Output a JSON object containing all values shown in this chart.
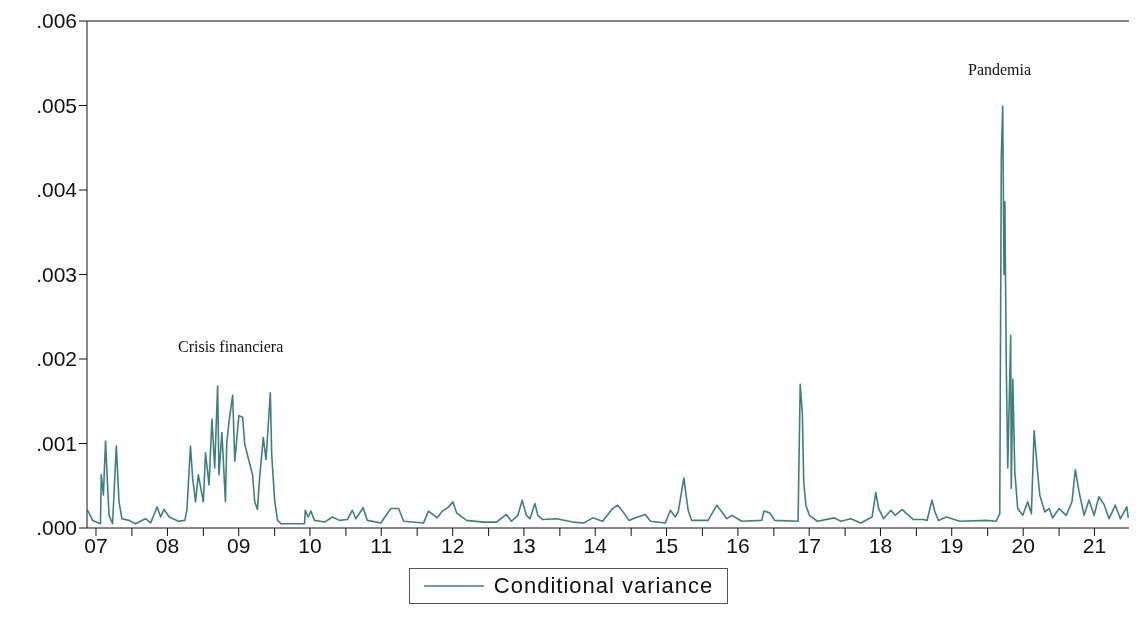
{
  "chart_data": {
    "type": "line",
    "x": [
      "2007-05-19",
      "2007-06-14",
      "2007-07-24",
      "2007-07-28",
      "2007-08-08",
      "2007-08-19",
      "2007-08-30",
      "2007-09-06",
      "2007-09-24",
      "2007-10-13",
      "2007-10-27",
      "2007-11-11",
      "2007-12-17",
      "2008-01-19",
      "2008-03-11",
      "2008-04-06",
      "2008-05-09",
      "2008-05-27",
      "2008-06-14",
      "2008-07-10",
      "2008-08-26",
      "2008-09-28",
      "2008-10-09",
      "2008-10-27",
      "2008-11-07",
      "2008-11-22",
      "2008-12-06",
      "2009-01-01",
      "2009-01-12",
      "2009-01-30",
      "2009-02-14",
      "2009-02-28",
      "2009-03-15",
      "2009-03-22",
      "2009-04-06",
      "2009-04-24",
      "2009-05-01",
      "2009-05-12",
      "2009-05-31",
      "2009-06-11",
      "2009-07-02",
      "2009-07-21",
      "2009-08-01",
      "2009-08-23",
      "2009-09-10",
      "2009-09-21",
      "2009-10-05",
      "2009-10-16",
      "2009-11-04",
      "2009-11-18",
      "2009-12-10",
      "2009-12-17",
      "2010-01-01",
      "2010-01-16",
      "2010-02-03",
      "2010-06-03",
      "2010-06-07",
      "2010-06-22",
      "2010-07-06",
      "2010-07-24",
      "2010-09-14",
      "2010-10-24",
      "2010-11-29",
      "2011-01-08",
      "2011-02-03",
      "2011-02-21",
      "2011-03-30",
      "2011-04-21",
      "2011-06-29",
      "2011-08-19",
      "2011-09-28",
      "2011-10-24",
      "2012-02-03",
      "2012-02-28",
      "2012-04-13",
      "2012-05-09",
      "2012-06-11",
      "2012-07-02",
      "2012-07-21",
      "2012-09-10",
      "2012-12-06",
      "2013-02-10",
      "2013-04-02",
      "2013-04-28",
      "2013-05-31",
      "2013-06-22",
      "2013-07-13",
      "2013-08-01",
      "2013-08-26",
      "2013-09-10",
      "2013-10-05",
      "2013-12-14",
      "2014-03-08",
      "2014-05-05",
      "2014-06-18",
      "2014-08-08",
      "2014-09-28",
      "2014-10-24",
      "2014-11-18",
      "2014-12-21",
      "2015-01-23",
      "2015-03-15",
      "2015-04-10",
      "2015-06-25",
      "2015-07-21",
      "2015-08-15",
      "2015-08-30",
      "2015-09-28",
      "2015-10-20",
      "2015-11-07",
      "2016-01-30",
      "2016-03-15",
      "2016-04-10",
      "2016-05-05",
      "2016-05-31",
      "2016-07-21",
      "2016-10-31",
      "2016-11-11",
      "2016-12-10",
      "2017-01-05",
      "2017-05-05",
      "2017-05-16",
      "2017-05-27",
      "2017-06-03",
      "2017-06-14",
      "2017-07-02",
      "2017-08-12",
      "2017-11-07",
      "2017-12-10",
      "2018-01-30",
      "2018-03-22",
      "2018-05-19",
      "2018-06-07",
      "2018-06-22",
      "2018-07-17",
      "2018-08-23",
      "2018-09-14",
      "2018-10-20",
      "2018-11-22",
      "2018-12-17",
      "2019-02-06",
      "2019-02-25",
      "2019-03-22",
      "2019-04-06",
      "2019-04-24",
      "2019-06-03",
      "2019-08-12",
      "2019-12-25",
      "2020-02-14",
      "2020-03-03",
      "2020-03-11",
      "2020-03-18",
      "2020-03-25",
      "2020-03-29",
      "2020-04-06",
      "2020-04-13",
      "2020-04-28",
      "2020-05-01",
      "2020-05-09",
      "2020-05-19",
      "2020-06-03",
      "2020-06-29",
      "2020-07-24",
      "2020-08-12",
      "2020-08-26",
      "2020-09-14",
      "2020-09-24",
      "2020-10-20",
      "2020-11-11",
      "2020-11-29",
      "2021-01-01",
      "2021-02-06",
      "2021-03-08",
      "2021-03-25",
      "2021-04-13",
      "2021-05-09",
      "2021-06-03",
      "2021-06-29",
      "2021-07-24",
      "2021-08-19",
      "2021-09-14",
      "2021-10-16",
      "2021-11-11",
      "2021-12-14",
      "2021-12-21"
    ],
    "series": [
      {
        "name": "Conditional variance",
        "color": "#3f807d",
        "values": [
          0.00021,
          9e-05,
          5e-05,
          0.00063,
          0.00039,
          0.00103,
          0.00047,
          0.00015,
          5e-05,
          0.00097,
          0.00031,
          0.00011,
          9e-05,
          5e-05,
          0.00011,
          6e-05,
          0.00025,
          0.00013,
          0.00022,
          0.00013,
          8e-05,
          9e-05,
          0.00022,
          0.00097,
          0.00059,
          0.00031,
          0.00063,
          0.00031,
          0.00089,
          0.00051,
          0.00129,
          0.00071,
          0.00168,
          0.00063,
          0.00113,
          0.00031,
          0.00101,
          0.00125,
          0.00157,
          0.00079,
          0.00133,
          0.00131,
          0.00099,
          0.00079,
          0.00063,
          0.00031,
          0.00022,
          0.00059,
          0.00107,
          0.00081,
          0.0016,
          0.00087,
          0.00033,
          9e-05,
          5e-05,
          5e-05,
          0.00021,
          0.00013,
          0.0002,
          9e-05,
          7e-05,
          0.00013,
          9e-05,
          0.0001,
          0.00021,
          0.00011,
          0.00024,
          9e-05,
          6e-05,
          0.00023,
          0.00023,
          8e-05,
          6e-05,
          0.0002,
          0.00012,
          0.0002,
          0.00025,
          0.00031,
          0.00018,
          9e-05,
          7e-05,
          7e-05,
          0.00016,
          8e-05,
          0.00015,
          0.00033,
          0.00015,
          0.00011,
          0.00029,
          0.00015,
          0.0001,
          0.00011,
          7e-05,
          6e-05,
          0.00012,
          8e-05,
          0.00023,
          0.00027,
          0.0002,
          9e-05,
          0.00012,
          0.00016,
          8e-05,
          6e-05,
          0.00021,
          0.00013,
          0.00019,
          0.00059,
          0.00021,
          9e-05,
          9e-05,
          0.00027,
          0.00019,
          0.00011,
          0.00015,
          8e-05,
          9e-05,
          0.0002,
          0.00018,
          9e-05,
          8e-05,
          0.0017,
          0.00135,
          0.00055,
          0.00027,
          0.00015,
          8e-05,
          0.00012,
          8e-05,
          0.00011,
          6e-05,
          0.00013,
          0.00042,
          0.00023,
          0.00011,
          0.00021,
          0.00015,
          0.00022,
          0.00015,
          0.0001,
          0.0001,
          9e-05,
          0.00033,
          0.00019,
          9e-05,
          0.00013,
          8e-05,
          9e-05,
          8e-05,
          0.00017,
          0.0044,
          0.00499,
          0.003,
          0.00386,
          0.00183,
          0.00071,
          0.00228,
          0.00047,
          0.00176,
          0.00067,
          0.00023,
          0.00015,
          0.00031,
          0.00017,
          0.00115,
          0.00063,
          0.00039,
          0.00019,
          0.00023,
          0.00012,
          0.00023,
          0.00015,
          0.00031,
          0.00069,
          0.00043,
          0.00015,
          0.00033,
          0.00015,
          0.00037,
          0.00028,
          0.00011,
          0.00027,
          0.00011,
          0.00025,
          0.00012
        ]
      }
    ],
    "xlim": [
      "2007-05-16",
      "2021-12-25"
    ],
    "xticks": [
      {
        "value": "2007-07-01",
        "label": "07"
      },
      {
        "value": "2008-01-01",
        "label": null
      },
      {
        "value": "2008-07-01",
        "label": "08"
      },
      {
        "value": "2009-01-01",
        "label": null
      },
      {
        "value": "2009-07-01",
        "label": "09"
      },
      {
        "value": "2010-01-01",
        "label": null
      },
      {
        "value": "2010-07-01",
        "label": "10"
      },
      {
        "value": "2011-01-01",
        "label": null
      },
      {
        "value": "2011-07-01",
        "label": "11"
      },
      {
        "value": "2012-01-01",
        "label": null
      },
      {
        "value": "2012-07-01",
        "label": "12"
      },
      {
        "value": "2013-01-01",
        "label": null
      },
      {
        "value": "2013-07-01",
        "label": "13"
      },
      {
        "value": "2014-01-01",
        "label": null
      },
      {
        "value": "2014-07-01",
        "label": "14"
      },
      {
        "value": "2015-01-01",
        "label": null
      },
      {
        "value": "2015-07-01",
        "label": "15"
      },
      {
        "value": "2016-01-01",
        "label": null
      },
      {
        "value": "2016-07-01",
        "label": "16"
      },
      {
        "value": "2017-01-01",
        "label": null
      },
      {
        "value": "2017-07-01",
        "label": "17"
      },
      {
        "value": "2018-01-01",
        "label": null
      },
      {
        "value": "2018-07-01",
        "label": "18"
      },
      {
        "value": "2019-01-01",
        "label": null
      },
      {
        "value": "2019-07-01",
        "label": "19"
      },
      {
        "value": "2020-01-01",
        "label": null
      },
      {
        "value": "2020-07-01",
        "label": "20"
      },
      {
        "value": "2021-01-01",
        "label": null
      },
      {
        "value": "2021-07-01",
        "label": "21"
      }
    ],
    "ylim": [
      0,
      0.006
    ],
    "yticks": [
      {
        "value": 0,
        "label": ".000"
      },
      {
        "value": 0.001,
        "label": ".001"
      },
      {
        "value": 0.002,
        "label": ".002"
      },
      {
        "value": 0.003,
        "label": ".003"
      },
      {
        "value": 0.004,
        "label": ".004"
      },
      {
        "value": 0.005,
        "label": ".005"
      },
      {
        "value": 0.006,
        "label": ".006"
      }
    ],
    "annotations": [
      "Crisis financiera",
      "Pandemia"
    ],
    "legend": "bottom",
    "line_style": "solid"
  }
}
